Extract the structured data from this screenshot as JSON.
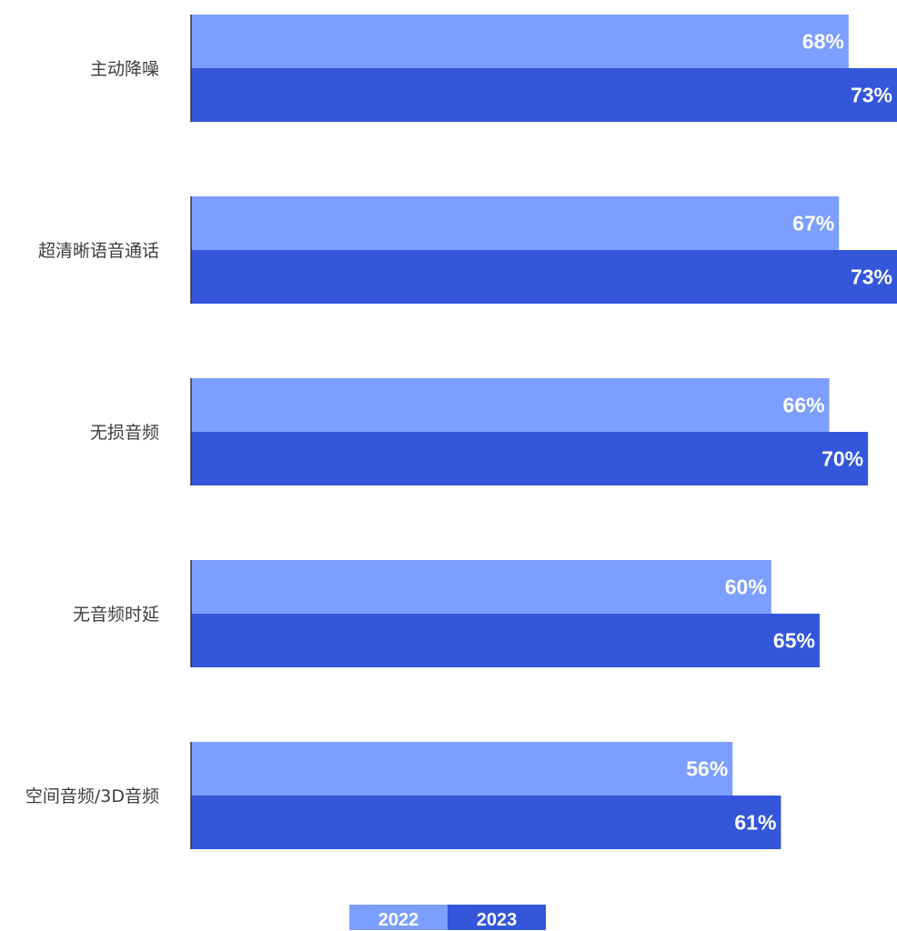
{
  "chart_data": {
    "type": "bar",
    "orientation": "horizontal",
    "categories": [
      "主动降噪",
      "超清晰语音通话",
      "无损音频",
      "无音频时延",
      "空间音频/3D音频"
    ],
    "series": [
      {
        "name": "2022",
        "values": [
          68,
          67,
          66,
          60,
          56
        ],
        "labels": [
          "68%",
          "67%",
          "66%",
          "60%",
          "56%"
        ],
        "color": "#7c9eff"
      },
      {
        "name": "2023",
        "values": [
          73,
          73,
          70,
          65,
          61
        ],
        "labels": [
          "73%",
          "73%",
          "70%",
          "65%",
          "61%"
        ],
        "color": "#3356db"
      }
    ],
    "xlim": [
      0,
      73
    ],
    "grid": false,
    "legend_position": "bottom-center"
  }
}
